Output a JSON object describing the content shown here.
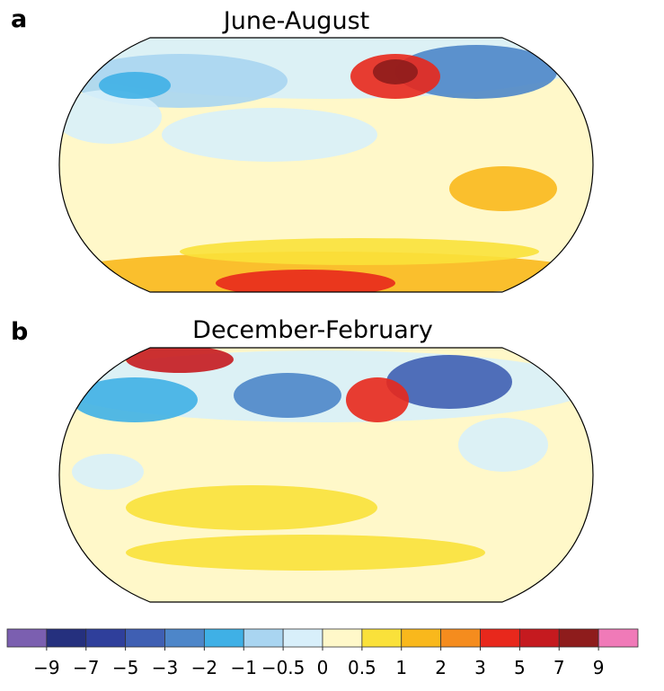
{
  "panels": [
    {
      "label": "a",
      "title": "June-August"
    },
    {
      "label": "b",
      "title": "December-February"
    }
  ],
  "colorbar": {
    "colors": [
      "#7b5fb0",
      "#25307e",
      "#2f3f9b",
      "#3f5fb3",
      "#4d86c9",
      "#3fb0e6",
      "#a9d5f1",
      "#d8effa",
      "#fff8c9",
      "#fae13a",
      "#f9b81c",
      "#f58c1e",
      "#e8281c",
      "#c51a1f",
      "#8e1c1c",
      "#f07ab8"
    ],
    "ticks": [
      {
        "value": -9,
        "label": "−9"
      },
      {
        "value": -7,
        "label": "−7"
      },
      {
        "value": -5,
        "label": "−5"
      },
      {
        "value": -3,
        "label": "−3"
      },
      {
        "value": -2,
        "label": "−2"
      },
      {
        "value": -1,
        "label": "−1"
      },
      {
        "value": -0.5,
        "label": "−0.5"
      },
      0,
      0.5,
      1,
      2,
      3,
      5,
      7,
      9
    ]
  }
}
